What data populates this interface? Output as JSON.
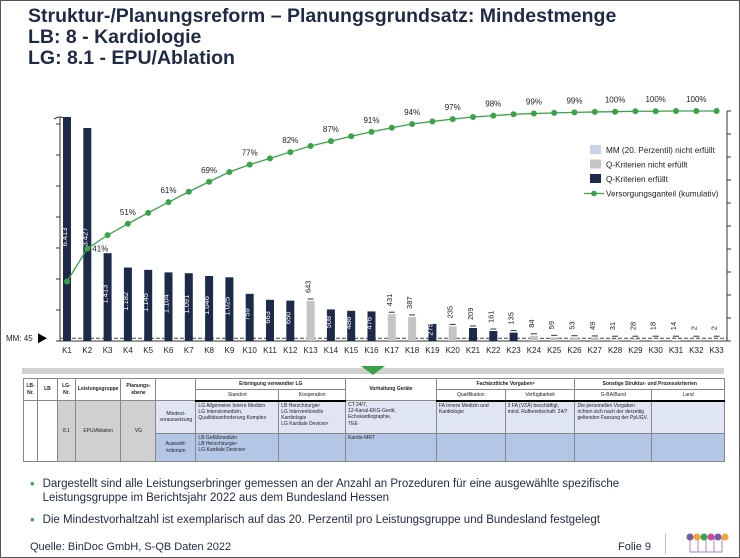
{
  "title": {
    "line1": "Struktur-/Planungsreform – Planungsgrundsatz: Mindestmenge",
    "line2": "LB: 8 - Kardiologie",
    "line3": "LG: 8.1 - EPU/Ablation"
  },
  "chart_data": {
    "type": "bar",
    "categories": [
      "K1",
      "K2",
      "K3",
      "K4",
      "K5",
      "K6",
      "K7",
      "K8",
      "K9",
      "K10",
      "K11",
      "K12",
      "K13",
      "K14",
      "K15",
      "K16",
      "K17",
      "K18",
      "K19",
      "K20",
      "K21",
      "K22",
      "K23",
      "K24",
      "K25",
      "K26",
      "K27",
      "K28",
      "K29",
      "K30",
      "K31",
      "K32",
      "K33"
    ],
    "values": [
      6413,
      3427,
      1413,
      1182,
      1145,
      1104,
      1091,
      1046,
      1025,
      759,
      663,
      650,
      643,
      508,
      486,
      476,
      431,
      387,
      275,
      235,
      209,
      161,
      135,
      84,
      59,
      53,
      49,
      31,
      28,
      18,
      14,
      2,
      2
    ],
    "value_labels": [
      "6.413",
      "3.427",
      "1.413",
      "1.182",
      "1.145",
      "1.104",
      "1.091",
      "1.046",
      "1.025",
      "759",
      "663",
      "650",
      "643",
      "508",
      "486",
      "476",
      "431",
      "387",
      "275",
      "235",
      "209",
      "161",
      "135",
      "84",
      "59",
      "53",
      "49",
      "31",
      "28",
      "18",
      "14",
      "2",
      "2"
    ],
    "status": [
      "q_ok",
      "q_ok",
      "q_ok",
      "q_ok",
      "q_ok",
      "q_ok",
      "q_ok",
      "q_ok",
      "q_ok",
      "q_ok",
      "q_ok",
      "q_ok",
      "q_fail",
      "q_ok",
      "q_ok",
      "q_ok",
      "q_fail",
      "q_fail",
      "q_ok",
      "q_fail",
      "q_ok",
      "q_ok",
      "q_ok",
      "q_fail",
      "q_fail",
      "q_fail",
      "q_fail",
      "mm_fail",
      "mm_fail",
      "mm_fail",
      "mm_fail",
      "mm_fail",
      "mm_fail"
    ],
    "cumulative_pct": [
      26.5,
      40.7,
      46.5,
      51.4,
      56.1,
      60.7,
      65.2,
      69.5,
      73.7,
      76.9,
      79.6,
      82.3,
      84.9,
      87.0,
      89.1,
      91.0,
      92.8,
      94.4,
      95.5,
      96.5,
      97.4,
      98.0,
      98.6,
      98.9,
      99.2,
      99.4,
      99.6,
      99.7,
      99.9,
      99.9,
      100,
      100,
      100
    ],
    "cumulative_labels": {
      "1": "41%",
      "3": "51%",
      "5": "61%",
      "7": "69%",
      "9": "77%",
      "11": "82%",
      "13": "87%",
      "15": "91%",
      "17": "94%",
      "19": "97%",
      "21": "98%",
      "23": "99%",
      "25": "99%",
      "27": "100%",
      "29": "100%",
      "31": "100%"
    },
    "mm_threshold": 45,
    "mm_label": "MM: 45",
    "ylim": [
      0,
      3500
    ],
    "y2lim": [
      0,
      100
    ],
    "legend": [
      {
        "key": "mm_fail",
        "label": "MM (20. Perzentil) nicht erfüllt",
        "color": "#c5d2e8"
      },
      {
        "key": "q_fail",
        "label": "Q-Kriterien nicht erfüllt",
        "color": "#c4c4c4"
      },
      {
        "key": "q_ok",
        "label": "Q-Kriterien erfüllt",
        "color": "#1e2a4a"
      },
      {
        "key": "line",
        "label": "Versorgungsganteil (kumulativ)",
        "color": "#3aa34a"
      }
    ],
    "legend_position": "right"
  },
  "table": {
    "headers": {
      "lb_nr": "LB-Nr.",
      "lb": "LB",
      "lg_nr": "LG-Nr.",
      "leistungsgruppe": "Leistungsgruppe",
      "planungsebene": "Planungs-ebene",
      "erbringung": "Erbringung verwandter LG",
      "standort": "Standort",
      "kooperation": "Kooperation",
      "vorhaltung": "Vorhaltung Geräte",
      "fachaerztlich": "Fachärztliche Vorgaben⁶",
      "qualifikation": "Qualifikation",
      "verfuegbarkeit": "Verfügbarkeit",
      "sonstige": "Sonstige Struktur- und Prozesskriterien",
      "gba": "G-BA/Bund",
      "land": "Land"
    },
    "row": {
      "lg_nr": "8.1",
      "leistungsgruppe": "EPU/Ablation",
      "planungsebene": "VG"
    },
    "mindest": {
      "label": "Mindest-voraussetzung",
      "standort": "LG Allgemeine Innere Medizin\nLG Intensivmedizin, Qualitätsanforderung Komplex",
      "kooperation": "LB Herzchirurgie¹\nLG Interventionelle Kardiologie\nLG Kardiale Devices¹",
      "vorhaltung": "CT 24/7,\n12-Kanal-EKG-Gerät,\nEchokardiographie,\nTEE",
      "qualifikation": "FA Innere Medizin und Kardiologie",
      "verfuegbarkeit": "3 FA (VZÄ) beschäftigt, mind. Rufbereitschaft: 24/7",
      "gba": "Die personellen Vorgaben richten sich nach der derzeitig geltenden Fassung der PpUGV.",
      "land": ""
    },
    "auswahl": {
      "label": "Auswahl-kriterium",
      "standort": "LB Gefäßmedizin\nLB Herzchirurgie¹\nLG Kardiale Devices¹",
      "kooperation": "",
      "vorhaltung": "Kardio-MRT",
      "qualifikation": "",
      "verfuegbarkeit": "",
      "gba": "",
      "land": ""
    }
  },
  "bullets": [
    "Dargestellt sind alle Leistungserbringer gemessen an der Anzahl an Prozeduren für eine ausgewählte spezifische Leistungsgruppe im Berichtsjahr 2022 aus dem Bundesland Hessen",
    "Die Mindestvorhaltzahl ist exemplarisch auf das 20. Perzentil pro Leistungsgruppe und Bundesland festgelegt"
  ],
  "footer": {
    "source": "Quelle: BinDoc GmbH, S-QB Daten 2022",
    "folio": "Folie 9"
  }
}
